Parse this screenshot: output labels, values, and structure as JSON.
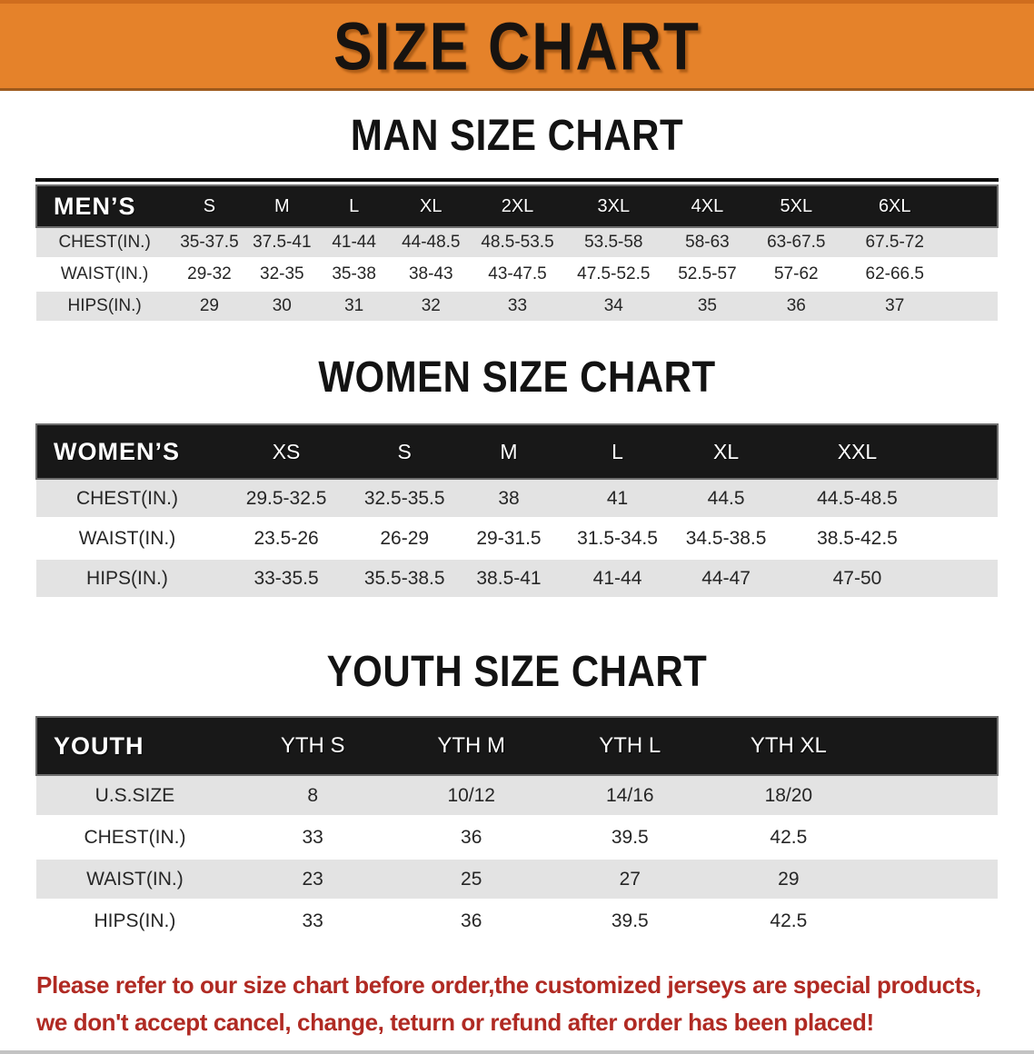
{
  "banner": {
    "title": "SIZE CHART",
    "background_color": "#e5822a",
    "text_color": "#171310"
  },
  "chart_data": [
    {
      "type": "table",
      "title": "MAN SIZE CHART",
      "group_label": "MEN’S",
      "columns": [
        "S",
        "M",
        "L",
        "XL",
        "2XL",
        "3XL",
        "4XL",
        "5XL",
        "6XL"
      ],
      "rows": [
        {
          "label": "CHEST(IN.)",
          "values": [
            "35-37.5",
            "37.5-41",
            "41-44",
            "44-48.5",
            "48.5-53.5",
            "53.5-58",
            "58-63",
            "63-67.5",
            "67.5-72"
          ]
        },
        {
          "label": "WAIST(IN.)",
          "values": [
            "29-32",
            "32-35",
            "35-38",
            "38-43",
            "43-47.5",
            "47.5-52.5",
            "52.5-57",
            "57-62",
            "62-66.5"
          ]
        },
        {
          "label": "HIPS(IN.)",
          "values": [
            "29",
            "30",
            "31",
            "32",
            "33",
            "34",
            "35",
            "36",
            "37"
          ]
        }
      ]
    },
    {
      "type": "table",
      "title": "WOMEN SIZE CHART",
      "group_label": "WOMEN’S",
      "columns": [
        "XS",
        "S",
        "M",
        "L",
        "XL",
        "XXL"
      ],
      "rows": [
        {
          "label": "CHEST(IN.)",
          "values": [
            "29.5-32.5",
            "32.5-35.5",
            "38",
            "41",
            "44.5",
            "44.5-48.5"
          ]
        },
        {
          "label": "WAIST(IN.)",
          "values": [
            "23.5-26",
            "26-29",
            "29-31.5",
            "31.5-34.5",
            "34.5-38.5",
            "38.5-42.5"
          ]
        },
        {
          "label": "HIPS(IN.)",
          "values": [
            "33-35.5",
            "35.5-38.5",
            "38.5-41",
            "41-44",
            "44-47",
            "47-50"
          ]
        }
      ]
    },
    {
      "type": "table",
      "title": "YOUTH SIZE CHART",
      "group_label": "YOUTH",
      "columns": [
        "YTH S",
        "YTH M",
        "YTH L",
        "YTH XL"
      ],
      "rows": [
        {
          "label": "U.S.SIZE",
          "values": [
            "8",
            "10/12",
            "14/16",
            "18/20"
          ]
        },
        {
          "label": "CHEST(IN.)",
          "values": [
            "33",
            "36",
            "39.5",
            "42.5"
          ]
        },
        {
          "label": "WAIST(IN.)",
          "values": [
            "23",
            "25",
            "27",
            "29"
          ]
        },
        {
          "label": "HIPS(IN.)",
          "values": [
            "33",
            "36",
            "39.5",
            "42.5"
          ]
        }
      ]
    }
  ],
  "footer": {
    "line1": "Please refer to our size chart before order,the customized jerseys are special products,",
    "line2": "we don't accept cancel, change, teturn or refund after order has been placed!",
    "text_color": "#b02a23"
  }
}
